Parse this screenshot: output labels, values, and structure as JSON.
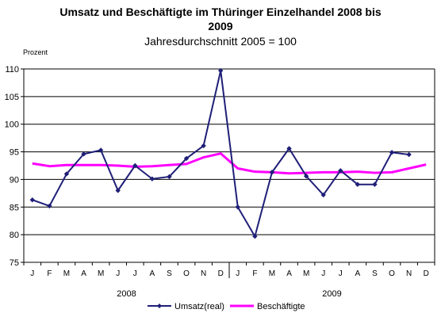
{
  "chart_data": {
    "type": "line",
    "title_line1": "Umsatz und Beschäftigte im Thüringer Einzelhandel 2008 bis",
    "title_line2": "2009",
    "subtitle": "Jahresdurchschnitt 2005 = 100",
    "ylabel": "Prozent",
    "ylim": [
      75,
      110
    ],
    "yticks": [
      75,
      80,
      85,
      90,
      95,
      100,
      105,
      110
    ],
    "grid": true,
    "legend_position": "bottom",
    "x": [
      "J",
      "F",
      "M",
      "A",
      "M",
      "J",
      "J",
      "A",
      "S",
      "O",
      "N",
      "D",
      "J",
      "F",
      "M",
      "A",
      "M",
      "J",
      "J",
      "A",
      "S",
      "O",
      "N",
      "D"
    ],
    "years": [
      {
        "label": "2008",
        "start_index": 0
      },
      {
        "label": "2009",
        "start_index": 12
      }
    ],
    "series": [
      {
        "name": "Umsatz(real)",
        "color": "#1F1F78",
        "marker": "diamond",
        "values": [
          86.3,
          85.2,
          91.0,
          94.6,
          95.3,
          88.0,
          92.5,
          90.1,
          90.5,
          93.8,
          96.1,
          109.7,
          85.0,
          79.7,
          91.3,
          95.6,
          90.6,
          87.2,
          91.6,
          89.1,
          89.1,
          94.9,
          94.5,
          null
        ]
      },
      {
        "name": "Beschäftigte",
        "color": "#FF00FF",
        "marker": "none",
        "values": [
          92.9,
          92.4,
          92.6,
          92.6,
          92.6,
          92.5,
          92.3,
          92.4,
          92.6,
          92.8,
          94.0,
          94.7,
          92.0,
          91.4,
          91.3,
          91.1,
          91.2,
          91.3,
          91.3,
          91.4,
          91.2,
          91.3,
          92.0,
          92.7
        ]
      }
    ]
  }
}
